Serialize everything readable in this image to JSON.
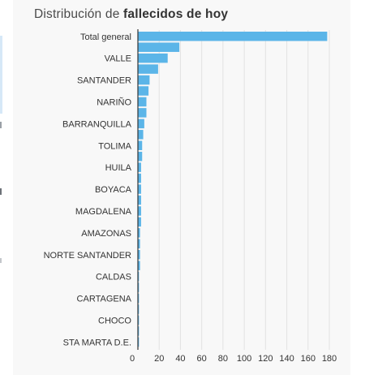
{
  "title_prefix": "Distribución de",
  "title_bold": "fallecidos de hoy",
  "chart_data": {
    "type": "bar",
    "orientation": "horizontal",
    "title": "Distribución de fallecidos de hoy",
    "categories": [
      "Total general",
      "",
      "VALLE",
      "",
      "SANTANDER",
      "",
      "NARIÑO",
      "",
      "BARRANQUILLA",
      "",
      "TOLIMA",
      "",
      "HUILA",
      "",
      "BOYACA",
      "",
      "MAGDALENA",
      "",
      "AMAZONAS",
      "",
      "NORTE SANTANDER",
      "",
      "CALDAS",
      "",
      "CARTAGENA",
      "",
      "CHOCO",
      "",
      "STA MARTA D.E."
    ],
    "values": [
      178,
      39,
      28,
      19,
      11,
      10,
      8,
      8,
      6,
      5,
      4,
      4,
      3,
      3,
      3,
      3,
      3,
      3,
      2,
      2,
      2,
      2,
      1,
      1,
      1,
      1,
      1,
      1,
      1
    ],
    "x_ticks": [
      0,
      20,
      40,
      60,
      80,
      100,
      120,
      140,
      160,
      180
    ],
    "xlim": [
      0,
      180
    ],
    "grid": true,
    "bar_color": "#5bb5e8"
  }
}
